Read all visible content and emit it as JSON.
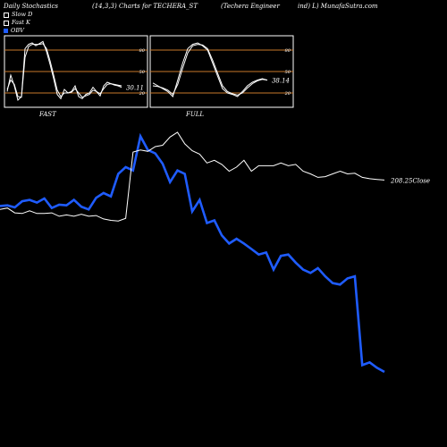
{
  "header": {
    "left": "Daily Stochastics",
    "params": "(14,3,3) Charts for TECHERA_ST",
    "company": "(Techera  Engineer",
    "site": "ind) L) MunafaSutra.com"
  },
  "legend": [
    {
      "label": "Slow  D",
      "color": "#ffffff"
    },
    {
      "label": "Fast K",
      "color": "#ffffff"
    },
    {
      "label": "OBV",
      "color": "#1f5cff"
    }
  ],
  "colors": {
    "obv": "#1f5cff",
    "close": "#ffffff",
    "level_line": "#c8782a",
    "background": "#000000"
  },
  "chart_data": [
    {
      "type": "line",
      "title": "FAST",
      "levels": [
        80,
        50,
        20
      ],
      "ylim": [
        0,
        100
      ],
      "last_value_label": "30.11",
      "series": [
        {
          "name": "Fast K",
          "values": [
            22,
            45,
            30,
            10,
            15,
            82,
            88,
            90,
            86,
            89,
            92,
            78,
            60,
            40,
            18,
            12,
            25,
            20,
            22,
            30,
            15,
            12,
            18,
            20,
            28,
            22,
            16,
            30,
            35,
            33,
            31,
            30,
            28
          ]
        },
        {
          "name": "Slow  D",
          "values": [
            25,
            38,
            32,
            15,
            14,
            70,
            85,
            88,
            88,
            88,
            89,
            82,
            65,
            45,
            24,
            15,
            20,
            20,
            21,
            26,
            20,
            14,
            16,
            18,
            24,
            22,
            19,
            26,
            32,
            33,
            32,
            31,
            30
          ]
        }
      ]
    },
    {
      "type": "line",
      "title": "FULL",
      "levels": [
        80,
        50,
        20
      ],
      "ylim": [
        0,
        100
      ],
      "last_value_label": "38.14",
      "series": [
        {
          "name": "Fast K",
          "values": [
            34,
            30,
            26,
            22,
            15,
            38,
            62,
            82,
            88,
            90,
            86,
            80,
            62,
            44,
            26,
            20,
            18,
            15,
            22,
            30,
            35,
            38,
            40,
            38
          ]
        },
        {
          "name": "Slow  D",
          "values": [
            30,
            29,
            27,
            24,
            18,
            32,
            55,
            76,
            86,
            88,
            87,
            82,
            66,
            48,
            30,
            22,
            19,
            17,
            20,
            27,
            33,
            37,
            39,
            38
          ]
        }
      ]
    },
    {
      "type": "line",
      "series": [
        {
          "name": "OBV",
          "values": [
            203,
            204,
            201,
            210,
            212,
            208,
            214,
            200,
            205,
            204,
            212,
            202,
            198,
            215,
            222,
            217,
            250,
            260,
            255,
            305,
            285,
            280,
            265,
            238,
            255,
            250,
            195,
            212,
            178,
            182,
            160,
            148,
            155,
            148,
            140,
            132,
            135,
            110,
            130,
            132,
            120,
            110,
            105,
            112,
            100,
            90,
            88,
            97,
            100,
            -30,
            -26,
            -34,
            -40
          ]
        },
        {
          "name": "Close",
          "values": [
            198,
            200,
            193,
            192,
            196,
            192,
            192,
            193,
            188,
            190,
            188,
            191,
            188,
            189,
            184,
            182,
            181,
            185,
            282,
            285,
            283,
            290,
            292,
            304,
            311,
            294,
            284,
            279,
            266,
            270,
            264,
            254,
            260,
            270,
            254,
            262,
            262,
            262,
            266,
            262,
            264,
            254,
            250,
            245,
            246,
            250,
            254,
            250,
            251,
            245,
            243,
            242,
            241
          ]
        }
      ],
      "last_value_label": "208.25",
      "last_value_suffix": "Close"
    }
  ]
}
